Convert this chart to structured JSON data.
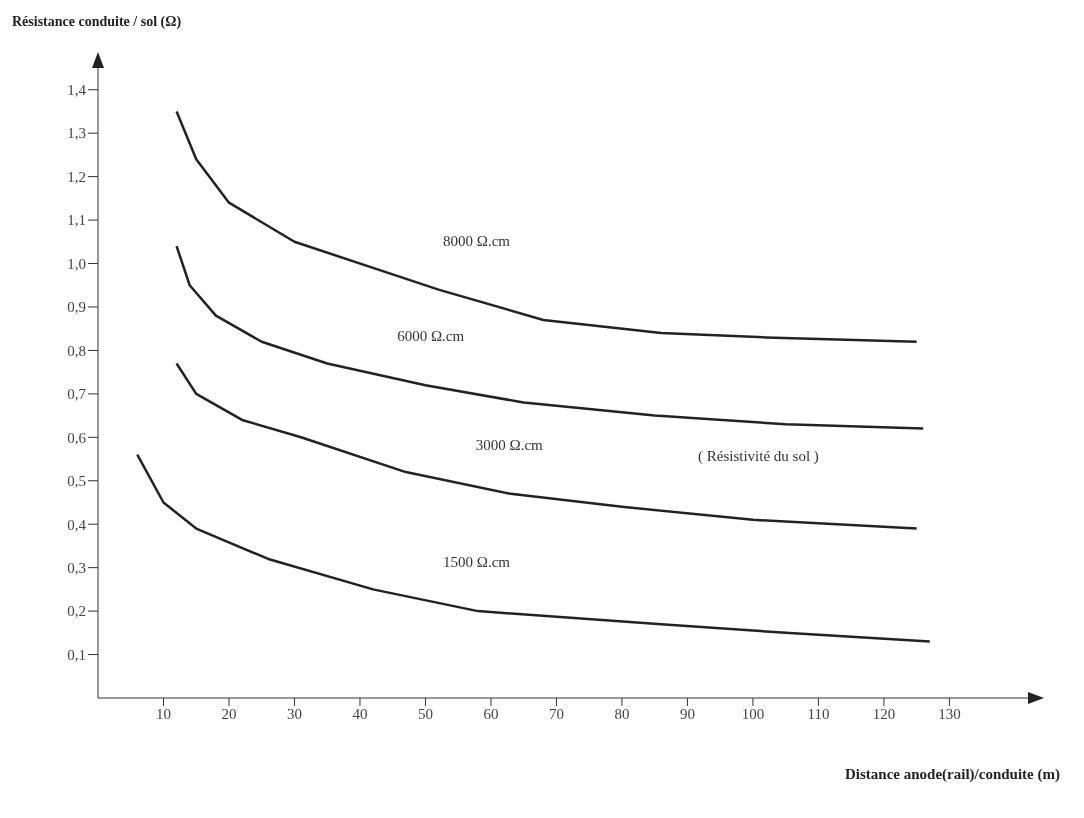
{
  "chart_data": {
    "type": "line",
    "ylabel": "Résistance conduite / sol  (Ω)",
    "xlabel": "Distance anode(rail)/conduite (m)",
    "annotations": [
      "( Résistivité du sol )"
    ],
    "xlim": [
      0,
      142
    ],
    "xticks": [
      10,
      20,
      30,
      40,
      50,
      60,
      70,
      80,
      90,
      100,
      110,
      120,
      130
    ],
    "ylim": [
      0,
      1.45
    ],
    "yticks": [
      {
        "value": 0.1,
        "label": "0,1"
      },
      {
        "value": 0.2,
        "label": "0,2"
      },
      {
        "value": 0.3,
        "label": "0,3"
      },
      {
        "value": 0.4,
        "label": "0,4"
      },
      {
        "value": 0.5,
        "label": "0,5"
      },
      {
        "value": 0.6,
        "label": "0,6"
      },
      {
        "value": 0.7,
        "label": "0,7"
      },
      {
        "value": 0.8,
        "label": "0,8"
      },
      {
        "value": 0.9,
        "label": "0,9"
      },
      {
        "value": 1.0,
        "label": "1,0"
      },
      {
        "value": 1.1,
        "label": "1,1"
      },
      {
        "value": 1.2,
        "label": "1,2"
      },
      {
        "value": 1.3,
        "label": "1,3"
      },
      {
        "value": 1.4,
        "label": "1,4"
      }
    ],
    "grid": false,
    "legend": false,
    "marker": "none",
    "line_style": "solid",
    "series": [
      {
        "name": "8000 Ω.cm",
        "color": "#222222",
        "x": [
          12,
          15,
          20,
          30,
          42,
          52,
          68,
          86,
          102,
          125
        ],
        "values": [
          1.35,
          1.24,
          1.14,
          1.05,
          0.99,
          0.94,
          0.87,
          0.84,
          0.83,
          0.82
        ]
      },
      {
        "name": "6000 Ω.cm",
        "color": "#222222",
        "x": [
          12,
          14,
          18,
          25,
          35,
          50,
          65,
          85,
          105,
          126
        ],
        "values": [
          1.04,
          0.95,
          0.88,
          0.82,
          0.77,
          0.72,
          0.68,
          0.65,
          0.63,
          0.62
        ]
      },
      {
        "name": "3000 Ω.cm",
        "color": "#222222",
        "x": [
          12,
          15,
          22,
          31,
          47,
          63,
          80,
          100,
          125
        ],
        "values": [
          0.77,
          0.7,
          0.64,
          0.6,
          0.52,
          0.47,
          0.44,
          0.41,
          0.39
        ]
      },
      {
        "name": "1500 Ω.cm",
        "color": "#222222",
        "x": [
          6,
          10,
          15,
          26,
          42,
          58,
          86,
          105,
          127
        ],
        "values": [
          0.56,
          0.45,
          0.39,
          0.32,
          0.25,
          0.2,
          0.17,
          0.15,
          0.13
        ]
      }
    ]
  }
}
